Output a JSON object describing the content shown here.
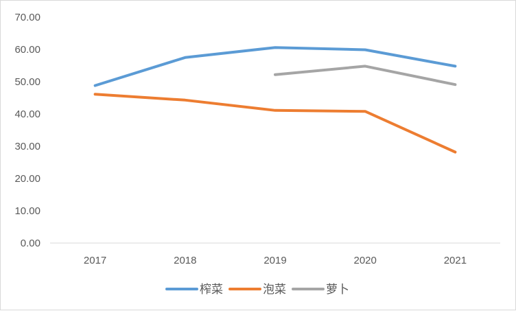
{
  "chart_data": {
    "type": "line",
    "categories": [
      "2017",
      "2018",
      "2019",
      "2020",
      "2021"
    ],
    "y_ticks": [
      "0.00",
      "10.00",
      "20.00",
      "30.00",
      "40.00",
      "50.00",
      "60.00",
      "70.00"
    ],
    "ylim": [
      0,
      70
    ],
    "grid": false,
    "legend_position": "bottom",
    "series": [
      {
        "name": "榨菜",
        "color": "#5b9bd5",
        "values": [
          48.8,
          57.5,
          60.6,
          59.9,
          54.8
        ]
      },
      {
        "name": "泡菜",
        "color": "#ed7d31",
        "values": [
          46.1,
          44.3,
          41.1,
          40.8,
          28.2
        ]
      },
      {
        "name": "萝卜",
        "color": "#a5a5a5",
        "values": [
          null,
          null,
          52.2,
          54.8,
          49.1
        ]
      }
    ]
  }
}
